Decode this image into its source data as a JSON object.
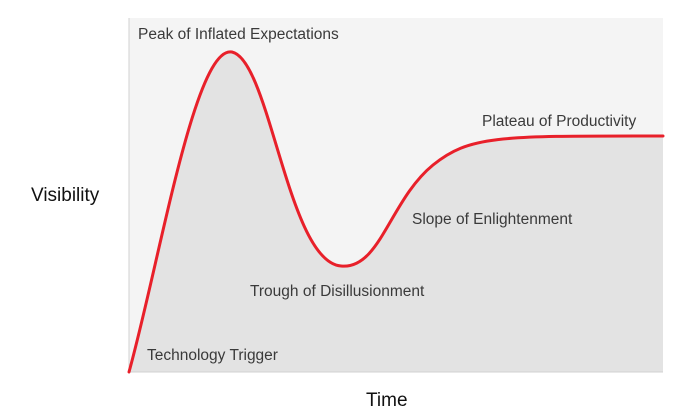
{
  "axes": {
    "y_label": "Visibility",
    "x_label": "Time"
  },
  "phases": [
    {
      "key": "trigger",
      "label": "Technology Trigger"
    },
    {
      "key": "peak",
      "label": "Peak of Inflated Expectations"
    },
    {
      "key": "trough",
      "label": "Trough of Disillusionment"
    },
    {
      "key": "slope",
      "label": "Slope of Enlightenment"
    },
    {
      "key": "plateau",
      "label": "Plateau of Productivity"
    }
  ],
  "colors": {
    "curve": "#e8202a",
    "plot_background": "#f4f4f4",
    "area_fill": "#e3e3e3",
    "axis_line": "#d2d2d2"
  }
}
